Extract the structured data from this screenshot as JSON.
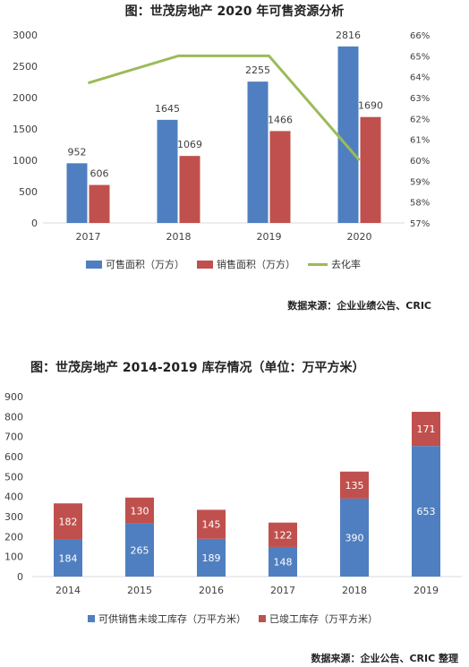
{
  "chart1": {
    "title": "图：世茂房地产 2020 年可售资源分析",
    "source": "数据来源：企业业绩公告、CRIC"
  },
  "chart2": {
    "title": "图：世茂房地产 2014-2019 库存情况（单位：万平方米）",
    "source": "数据来源：企业公告、CRIC 整理"
  },
  "colors": {
    "blue": "#4f7fc0",
    "red": "#c0504d",
    "green": "#9bbb59",
    "axis": "#d9d9d9"
  },
  "chart_data": [
    {
      "type": "bar",
      "categories": [
        "2017",
        "2018",
        "2019",
        "2020"
      ],
      "series": [
        {
          "name": "可售面积（万方）",
          "kind": "bar",
          "values": [
            952,
            1645,
            2255,
            2816
          ]
        },
        {
          "name": "销售面积（万方）",
          "kind": "bar",
          "values": [
            606,
            1069,
            1466,
            1690
          ]
        },
        {
          "name": "去化率",
          "kind": "line",
          "axis": "right",
          "values": [
            63.7,
            65.0,
            65.0,
            60.0
          ]
        }
      ],
      "ylim": [
        0,
        3000
      ],
      "yticks": [
        0,
        500,
        1000,
        1500,
        2000,
        2500,
        3000
      ],
      "y2lim": [
        57,
        66
      ],
      "y2ticks": [
        "57%",
        "58%",
        "59%",
        "60%",
        "61%",
        "62%",
        "63%",
        "64%",
        "65%",
        "66%"
      ],
      "legend": "bottom",
      "grid": false
    },
    {
      "type": "bar",
      "stacked": true,
      "categories": [
        "2014",
        "2015",
        "2016",
        "2017",
        "2018",
        "2019"
      ],
      "series": [
        {
          "name": "可供销售未竣工库存（万平方米）",
          "values": [
            184,
            265,
            189,
            148,
            390,
            653
          ]
        },
        {
          "name": "已竣工库存（万平方米）",
          "values": [
            182,
            130,
            145,
            122,
            135,
            171
          ]
        }
      ],
      "ylim": [
        0,
        900
      ],
      "yticks": [
        0,
        100,
        200,
        300,
        400,
        500,
        600,
        700,
        800,
        900
      ],
      "legend": "bottom",
      "grid": false
    }
  ]
}
